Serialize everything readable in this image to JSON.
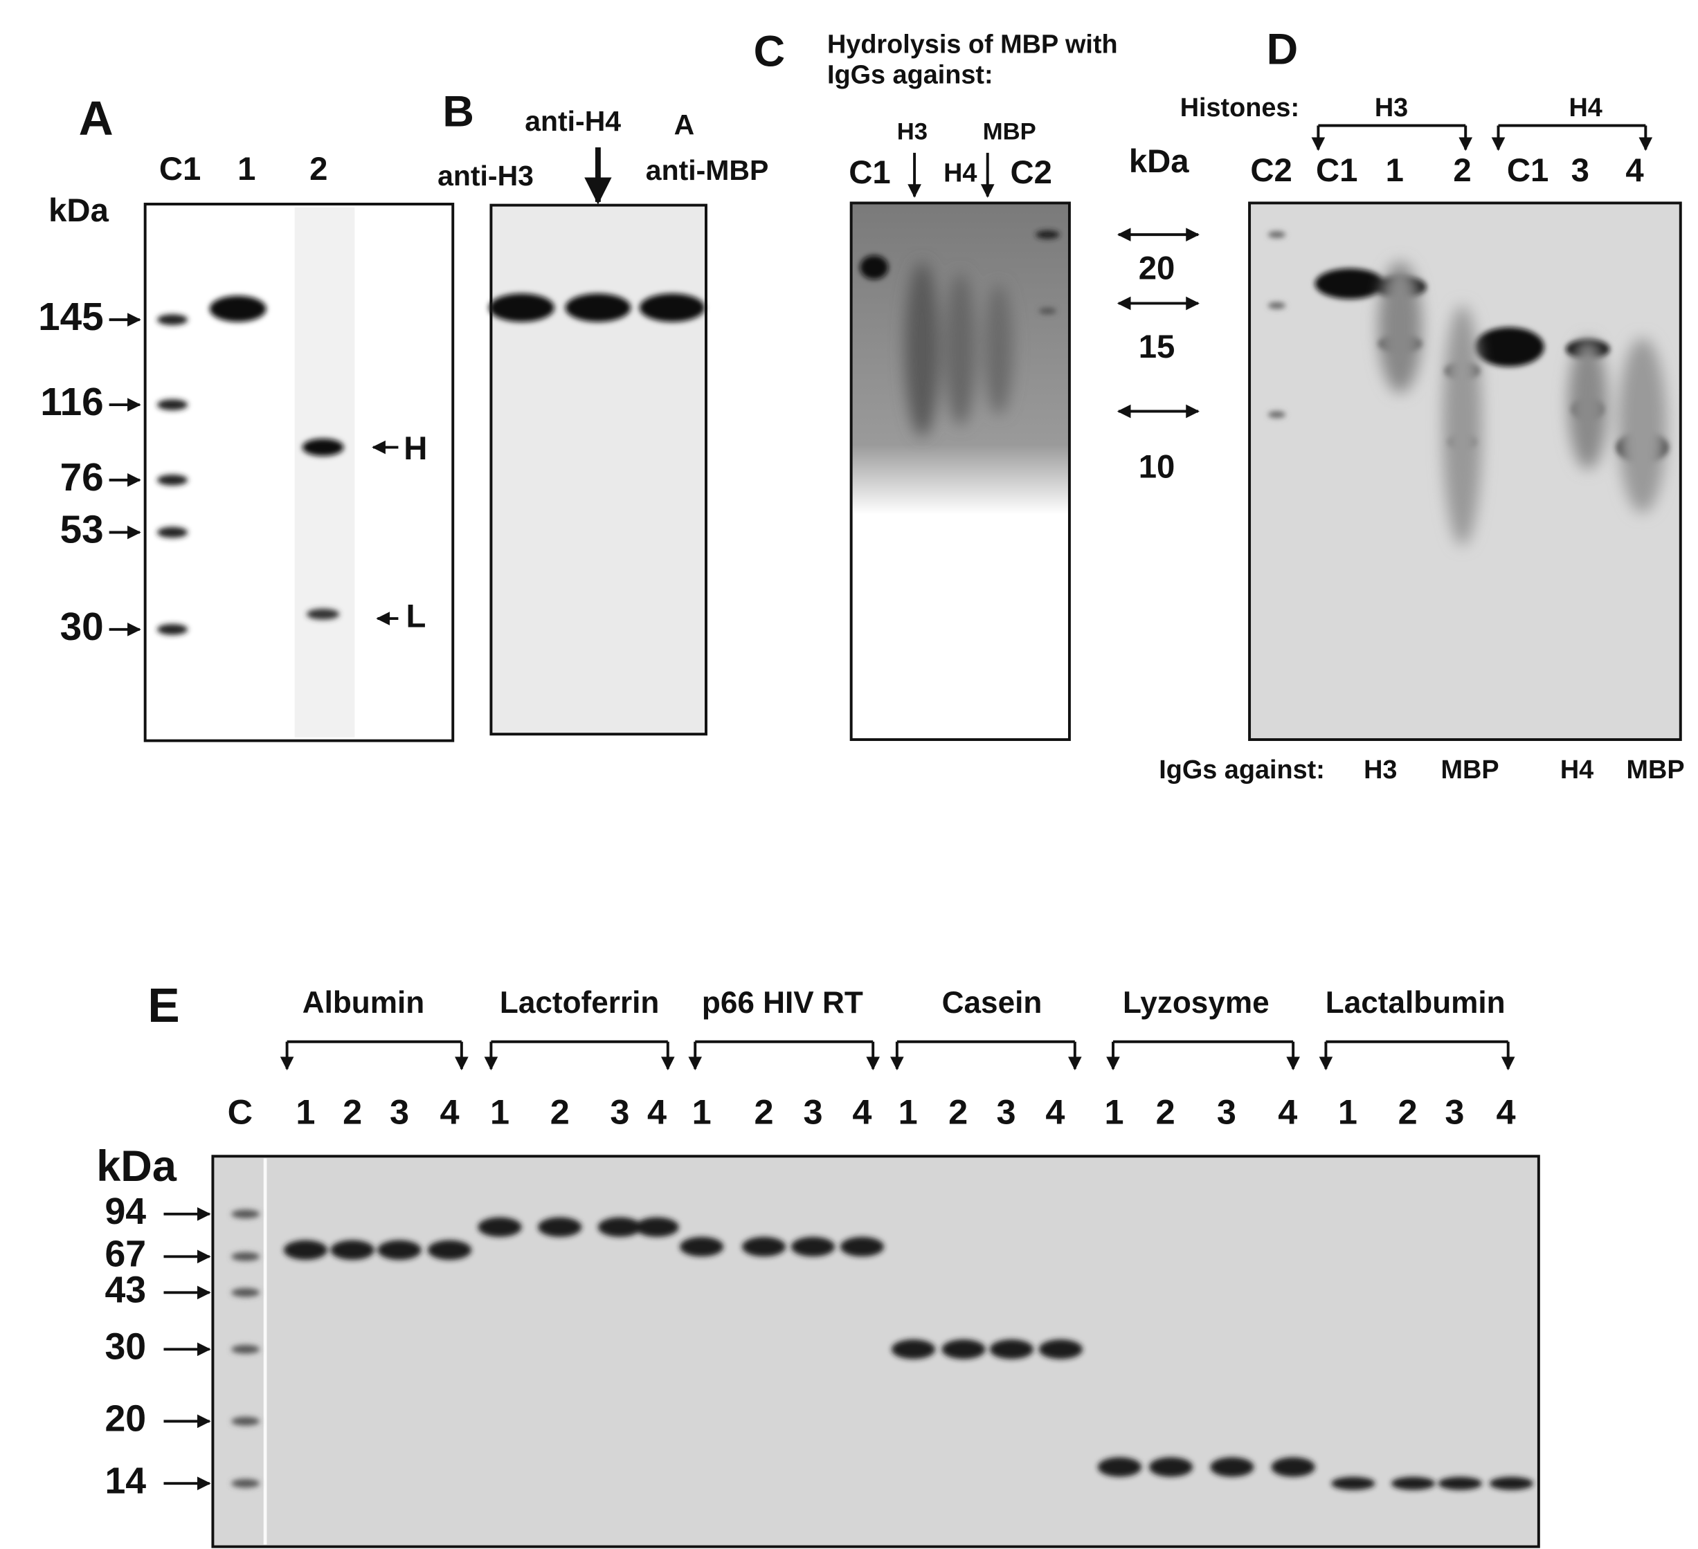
{
  "panel_a": {
    "label": "A",
    "lanes": [
      "C1",
      "1",
      "2"
    ],
    "axis_title": "kDa",
    "markers": [
      "145",
      "116",
      "76",
      "53",
      "30"
    ],
    "bands": [
      "H",
      "L"
    ]
  },
  "panel_b": {
    "label": "B",
    "headers": [
      "anti-H3",
      "anti-H4",
      "A",
      "anti-MBP"
    ]
  },
  "panel_c": {
    "label": "C",
    "title": [
      "Hydrolysis of MBP with",
      "IgGs against:"
    ],
    "upper_labels": [
      "H3",
      "MBP"
    ],
    "lanes": [
      "C1",
      "H4",
      "C2"
    ],
    "axis_title": "kDa",
    "markers": [
      "20",
      "15",
      "10"
    ]
  },
  "panel_d": {
    "label": "D",
    "histones_label": "Histones:",
    "groups": [
      "H3",
      "H4"
    ],
    "lanes": [
      "C2",
      "C1",
      "1",
      "2",
      "C1",
      "3",
      "4"
    ],
    "footer_label": "IgGs against:",
    "footer": [
      "H3",
      "MBP",
      "H4",
      "MBP"
    ]
  },
  "panel_e": {
    "label": "E",
    "control_lane": "C",
    "axis_title": "kDa",
    "markers": [
      "94",
      "67",
      "43",
      "30",
      "20",
      "14"
    ],
    "groups": [
      {
        "name": "Albumin",
        "lanes": [
          "1",
          "2",
          "3",
          "4"
        ]
      },
      {
        "name": "Lactoferrin",
        "lanes": [
          "1",
          "2",
          "3",
          "4"
        ]
      },
      {
        "name": "p66 HIV RT",
        "lanes": [
          "1",
          "2",
          "3",
          "4"
        ]
      },
      {
        "name": "Casein",
        "lanes": [
          "1",
          "2",
          "3",
          "4"
        ]
      },
      {
        "name": "Lyzosyme",
        "lanes": [
          "1",
          "2",
          "3",
          "4"
        ]
      },
      {
        "name": "Lactalbumin",
        "lanes": [
          "1",
          "2",
          "3",
          "4"
        ]
      }
    ]
  }
}
